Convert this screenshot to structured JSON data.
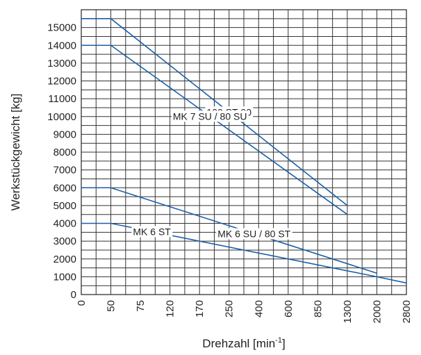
{
  "chart_data": {
    "type": "line",
    "xlabel": "Drehzahl [min",
    "xlabel_sup": "-1",
    "xlabel_end": "]",
    "ylabel": "Werkstückgewicht [kg]",
    "categories": [
      "0",
      "50",
      "75",
      "120",
      "170",
      "250",
      "400",
      "600",
      "850",
      "1300",
      "2000",
      "2800"
    ],
    "y_ticks": [
      "0",
      "1000",
      "2000",
      "3000",
      "4000",
      "5000",
      "6000",
      "7000",
      "8000",
      "9000",
      "10000",
      "11000",
      "12000",
      "13000",
      "14000",
      "15000"
    ],
    "ylim": [
      0,
      16000
    ],
    "grid": true,
    "series": [
      {
        "name": "100 ST-90",
        "x": [
          "0",
          "50",
          "1300"
        ],
        "y": [
          15500,
          15500,
          5000
        ]
      },
      {
        "name": "MK 7 SU / 80 SU",
        "x": [
          "0",
          "50",
          "1300"
        ],
        "y": [
          14000,
          14000,
          4500
        ]
      },
      {
        "name": "MK 6 SU / 80 ST",
        "x": [
          "0",
          "50",
          "2000"
        ],
        "y": [
          6000,
          6000,
          1200
        ]
      },
      {
        "name": "MK 6 ST",
        "x": [
          "0",
          "50",
          "2000",
          "2800"
        ],
        "y": [
          4000,
          4000,
          1000,
          650
        ]
      }
    ],
    "colors": {
      "series": "#1a5fa8",
      "grid": "#333333"
    }
  }
}
